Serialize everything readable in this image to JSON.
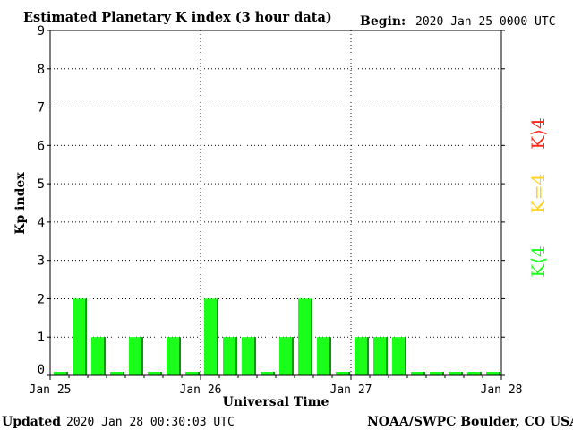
{
  "header": {
    "title": "Estimated Planetary K index (3 hour data)",
    "begin_label": "Begin:",
    "begin_value": "2020 Jan 25 0000 UTC"
  },
  "footer": {
    "updated_label": "Updated",
    "updated_value": "2020 Jan 28 00:30:03 UTC",
    "source": "NOAA/SWPC Boulder, CO USA"
  },
  "legend": {
    "high": "K⟩4",
    "equal": "K=4",
    "low": "K⟨4"
  },
  "colors": {
    "bar": "#19ff19",
    "bar_shade": "#0a9a0a",
    "legend_high": "#ff2a1a",
    "legend_equal": "#ffd21a",
    "legend_low": "#19ff19",
    "grid": "#000000",
    "axis": "#000000",
    "background": "#ffffff"
  },
  "chart_data": {
    "type": "bar",
    "xlabel": "Universal Time",
    "ylabel": "Kp index",
    "ylim": [
      0,
      9
    ],
    "yticks": [
      "0",
      "1",
      "2",
      "3",
      "4",
      "5",
      "6",
      "7",
      "8",
      "9"
    ],
    "xticks": [
      "Jan 25",
      "Jan 26",
      "Jan 27",
      "Jan 28"
    ],
    "grid": true,
    "series": [
      {
        "values": [
          0,
          2,
          1,
          0,
          1,
          0,
          1,
          0,
          2,
          1,
          1,
          0,
          1,
          2,
          1,
          0,
          1,
          1,
          1,
          0,
          0,
          0,
          0,
          0
        ]
      }
    ]
  }
}
